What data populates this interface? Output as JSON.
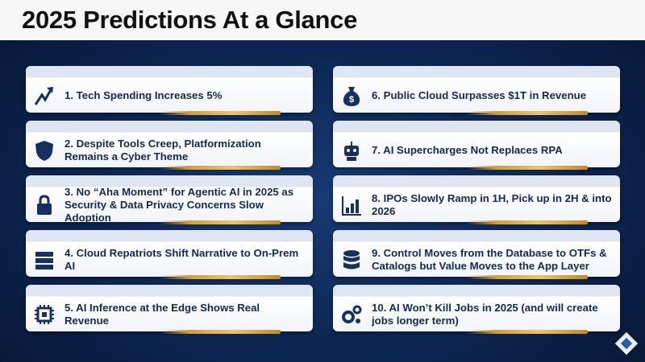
{
  "title": "2025 Predictions At a Glance",
  "predictions": [
    {
      "text": "1. Tech Spending Increases 5%"
    },
    {
      "text": "2. Despite Tools Creep, Platformization Remains a Cyber Theme"
    },
    {
      "text": "3. No “Aha Moment” for Agentic AI in 2025 as Security & Data Privacy Concerns Slow Adoption"
    },
    {
      "text": "4. Cloud Repatriots Shift Narrative to On-Prem AI"
    },
    {
      "text": "5. AI Inference at the Edge Shows Real Revenue"
    },
    {
      "text": "6. Public Cloud Surpasses $1T in Revenue"
    },
    {
      "text": "7. AI Supercharges Not Replaces RPA"
    },
    {
      "text": "8. IPOs Slowly Ramp in 1H, Pick up in 2H & into 2026"
    },
    {
      "text": "9. Control Moves from the Database to OTFs & Catalogs but Value Moves to the App Layer"
    },
    {
      "text": "10. AI Won’t Kill Jobs in 2025 (and will create jobs longer term)"
    }
  ]
}
